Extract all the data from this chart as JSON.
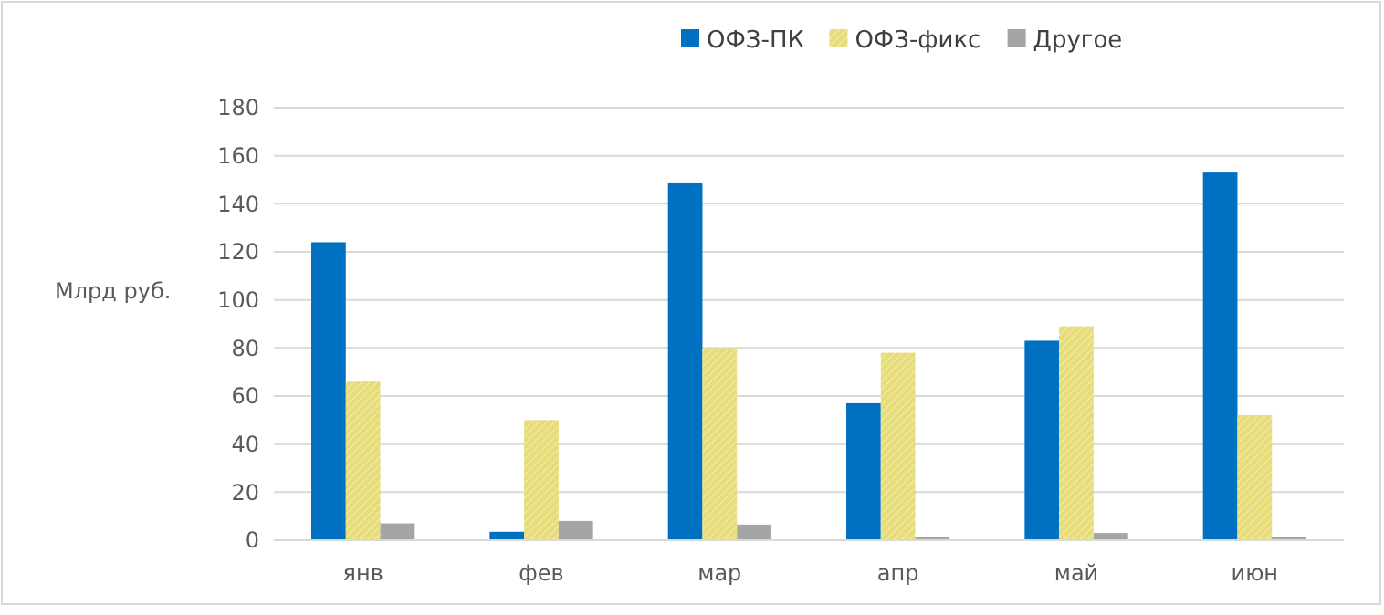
{
  "chart_data": {
    "type": "bar",
    "ylabel": "Млрд руб.",
    "categories": [
      "янв",
      "фев",
      "мар",
      "апр",
      "май",
      "июн"
    ],
    "series": [
      {
        "name": "ОФЗ-ПК",
        "color": "#0070c0",
        "values": [
          124,
          3.5,
          148.5,
          57,
          83,
          153
        ]
      },
      {
        "name": "ОФЗ-фикс",
        "color": "#e6dc78",
        "values": [
          66,
          50,
          80,
          78,
          89,
          52
        ]
      },
      {
        "name": "Другое",
        "color": "#a5a5a5",
        "values": [
          7,
          8,
          6.5,
          1.3,
          3,
          1.3
        ]
      }
    ],
    "ylim": [
      0,
      180
    ],
    "yticks": [
      0,
      20,
      40,
      60,
      80,
      100,
      120,
      140,
      160,
      180
    ],
    "grid": "y",
    "legend": "top"
  }
}
